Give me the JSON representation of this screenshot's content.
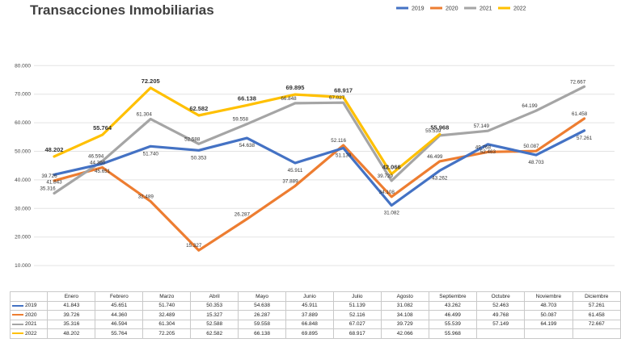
{
  "chart_data": {
    "type": "line",
    "title": "Transacciones Inmobiliarias",
    "categories": [
      "Enero",
      "Febrero",
      "Marzo",
      "Abril",
      "Mayo",
      "Junio",
      "Julio",
      "Agosto",
      "Septiembre",
      "Octubre",
      "Noviembre",
      "Diciembre"
    ],
    "ylim": [
      0,
      80000
    ],
    "y_ticks": [
      0,
      10000,
      20000,
      30000,
      40000,
      50000,
      60000,
      70000,
      80000
    ],
    "y_tick_labels": [
      "-",
      "10.000",
      "20.000",
      "30.000",
      "40.000",
      "50.000",
      "60.000",
      "70.000",
      "80.000"
    ],
    "grid": true,
    "legend": "top-right",
    "series": [
      {
        "name": "2019",
        "color": "#4472c4",
        "values": [
          41843,
          45651,
          51740,
          50353,
          54638,
          45911,
          51139,
          31082,
          43262,
          52463,
          48703,
          57261
        ],
        "labels": [
          "41.843",
          "45.651",
          "51.740",
          "50.353",
          "54.638",
          "45.911",
          "51.139",
          "31.082",
          "43.262",
          "52.463",
          "48.703",
          "57.261"
        ]
      },
      {
        "name": "2020",
        "color": "#ed7d31",
        "values": [
          39726,
          44360,
          32489,
          15327,
          26287,
          37889,
          52116,
          34108,
          46499,
          49768,
          50087,
          61458
        ],
        "labels": [
          "39.726",
          "44.360",
          "32.489",
          "15.327",
          "26.287",
          "37.889",
          "52.116",
          "34.108",
          "46.499",
          "49.768",
          "50.087",
          "61.458"
        ]
      },
      {
        "name": "2021",
        "color": "#a5a5a5",
        "values": [
          35316,
          46594,
          61304,
          52588,
          59558,
          66848,
          67027,
          39729,
          55539,
          57149,
          64199,
          72667
        ],
        "labels": [
          "35.316",
          "46.594",
          "61.304",
          "52.588",
          "59.558",
          "66.848",
          "67.027",
          "39.729",
          "55.539",
          "57.149",
          "64.199",
          "72.667"
        ]
      },
      {
        "name": "2022",
        "color": "#ffc000",
        "values": [
          48202,
          55764,
          72205,
          62582,
          66138,
          69895,
          68917,
          42066,
          55968,
          null,
          null,
          null
        ],
        "labels": [
          "48.202",
          "55.764",
          "72.205",
          "62.582",
          "66.138",
          "69.895",
          "68.917",
          "42.066",
          "55.968",
          "",
          "",
          ""
        ]
      }
    ]
  }
}
